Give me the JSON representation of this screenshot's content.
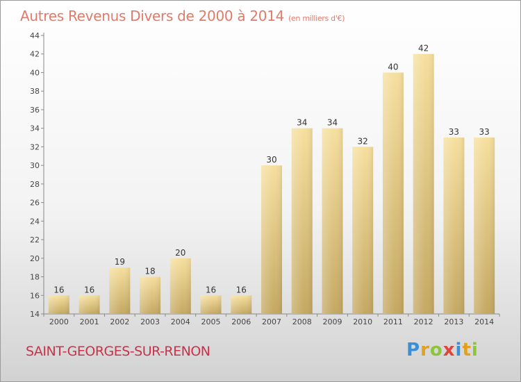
{
  "header": {
    "title": "Autres Revenus Divers de 2000 à 2014",
    "unit": "(en milliers d'€)"
  },
  "footer": {
    "commune": "SAINT-GEORGES-SUR-RENON",
    "logo_text": "Proxiti"
  },
  "colors": {
    "bar_top": "#f6df9e",
    "bar_bottom": "#c4a862",
    "title": "#e07a6a",
    "commune": "#c8324a"
  },
  "chart_data": {
    "type": "bar",
    "categories": [
      "2000",
      "2001",
      "2002",
      "2003",
      "2004",
      "2005",
      "2006",
      "2007",
      "2008",
      "2009",
      "2010",
      "2011",
      "2012",
      "2013",
      "2014"
    ],
    "values": [
      16,
      16,
      19,
      18,
      20,
      16,
      16,
      30,
      34,
      34,
      32,
      40,
      42,
      33,
      33
    ],
    "ylim": [
      14,
      44
    ],
    "yticks": [
      14,
      16,
      18,
      20,
      22,
      24,
      26,
      28,
      30,
      32,
      34,
      36,
      38,
      40,
      42,
      44
    ],
    "grid": false,
    "legend": "none"
  }
}
